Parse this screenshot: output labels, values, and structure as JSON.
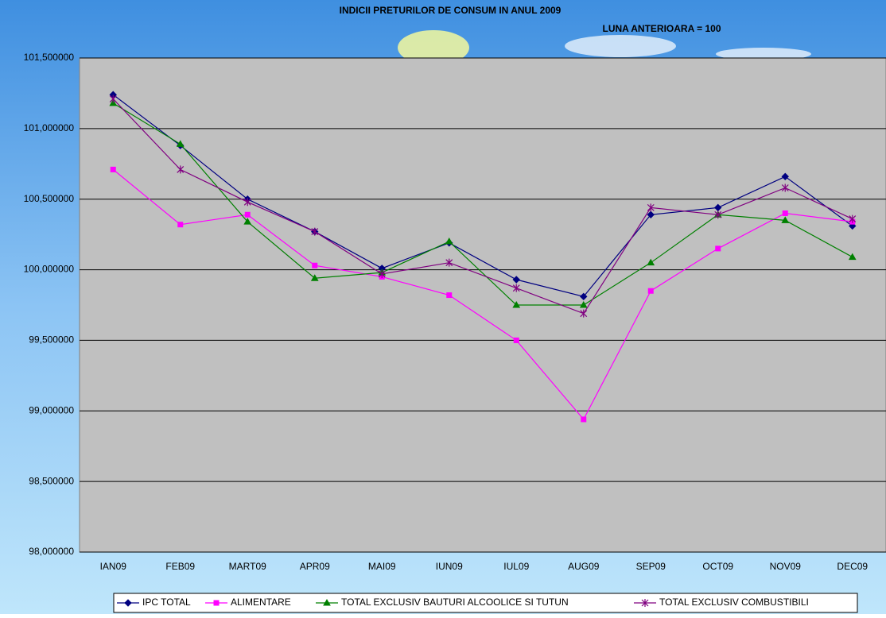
{
  "chart_data": {
    "type": "line",
    "title": "INDICII PRETURILOR DE CONSUM IN ANUL 2009",
    "subtitle": "LUNA ANTERIOARA = 100",
    "categories": [
      "IAN09",
      "FEB09",
      "MART09",
      "APR09",
      "MAI09",
      "IUN09",
      "IUL09",
      "AUG09",
      "SEP09",
      "OCT09",
      "NOV09",
      "DEC09"
    ],
    "series": [
      {
        "name": "IPC TOTAL",
        "color": "#000080",
        "marker": "diamond",
        "values": [
          101.24,
          100.88,
          100.5,
          100.27,
          100.01,
          100.19,
          99.93,
          99.81,
          100.39,
          100.44,
          100.66,
          100.31
        ]
      },
      {
        "name": "ALIMENTARE",
        "color": "#ff00ff",
        "marker": "square",
        "values": [
          100.71,
          100.32,
          100.39,
          100.03,
          99.95,
          99.82,
          99.5,
          98.94,
          99.85,
          100.15,
          100.4,
          100.34
        ]
      },
      {
        "name": "TOTAL EXCLUSIV BAUTURI ALCOOLICE SI TUTUN",
        "color": "#008000",
        "marker": "triangle",
        "values": [
          101.18,
          100.89,
          100.34,
          99.94,
          99.98,
          100.2,
          99.75,
          99.75,
          100.05,
          100.39,
          100.35,
          100.09
        ]
      },
      {
        "name": "TOTAL EXCLUSIV COMBUSTIBILI",
        "color": "#800080",
        "marker": "star",
        "values": [
          101.21,
          100.71,
          100.48,
          100.27,
          99.97,
          100.05,
          99.87,
          99.69,
          100.44,
          100.39,
          100.58,
          100.36
        ]
      }
    ],
    "ylim": [
      98.0,
      101.5
    ],
    "yticks": [
      {
        "value": 98.0,
        "label": "98,000000"
      },
      {
        "value": 98.5,
        "label": "98,500000"
      },
      {
        "value": 99.0,
        "label": "99,000000"
      },
      {
        "value": 99.5,
        "label": "99,500000"
      },
      {
        "value": 100.0,
        "label": "100,000000"
      },
      {
        "value": 100.5,
        "label": "100,500000"
      },
      {
        "value": 101.0,
        "label": "101,000000"
      },
      {
        "value": 101.5,
        "label": "101,500000"
      }
    ],
    "grid": true,
    "legend": "bottom",
    "plot_background": "#c0c0c0"
  }
}
